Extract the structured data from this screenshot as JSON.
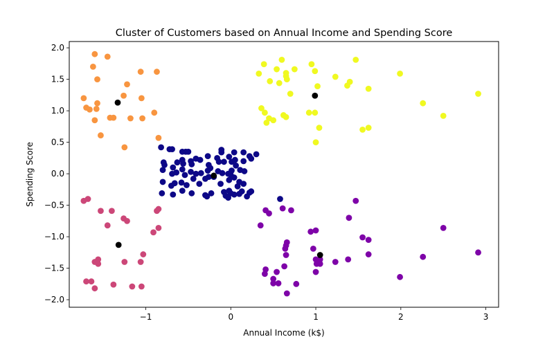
{
  "chart_data": {
    "type": "scatter",
    "title": "Cluster of Customers based on Annual Income and Spending Score",
    "xlabel": "Annual Income (k$)",
    "ylabel": "Spending Score",
    "xlim": [
      -1.9,
      3.15
    ],
    "ylim": [
      -2.12,
      2.1
    ],
    "xticks": [
      -1,
      0,
      1,
      2,
      3
    ],
    "yticks": [
      -2.0,
      -1.5,
      -1.0,
      -0.5,
      0.0,
      0.5,
      1.0,
      1.5,
      2.0
    ],
    "xtick_labels": [
      "−1",
      "0",
      "1",
      "2",
      "3"
    ],
    "ytick_labels": [
      "−2.0",
      "−1.5",
      "−1.0",
      "−0.5",
      "0.0",
      "0.5",
      "1.0",
      "1.5",
      "2.0"
    ],
    "grid": false,
    "clusters": [
      {
        "color": "#0d0887",
        "points": [
          [
            -0.82,
            0.42
          ],
          [
            -0.72,
            0.39
          ],
          [
            -0.69,
            0.39
          ],
          [
            -0.57,
            0.35
          ],
          [
            -0.53,
            0.35
          ],
          [
            -0.5,
            0.35
          ],
          [
            -0.27,
            0.28
          ],
          [
            -0.11,
            0.34
          ],
          [
            -0.11,
            0.38
          ],
          [
            -0.16,
            0.25
          ],
          [
            0.04,
            0.34
          ],
          [
            0.15,
            0.34
          ],
          [
            0.3,
            0.31
          ],
          [
            0.22,
            0.28
          ],
          [
            -0.02,
            0.27
          ],
          [
            -0.08,
            0.19
          ],
          [
            -0.14,
            0.19
          ],
          [
            0.01,
            0.19
          ],
          [
            0.06,
            0.13
          ],
          [
            0.05,
            0.22
          ],
          [
            0.15,
            0.2
          ],
          [
            0.24,
            0.24
          ],
          [
            -0.79,
            0.18
          ],
          [
            -0.78,
            0.14
          ],
          [
            -0.63,
            0.18
          ],
          [
            -0.68,
            0.1
          ],
          [
            -0.57,
            0.22
          ],
          [
            -0.56,
            0.16
          ],
          [
            -0.47,
            0.2
          ],
          [
            -0.46,
            0.15
          ],
          [
            -0.41,
            0.24
          ],
          [
            -0.36,
            0.22
          ],
          [
            -0.26,
            0.14
          ],
          [
            -0.27,
            0.05
          ],
          [
            -0.26,
            -0.05
          ],
          [
            -0.24,
            0.09
          ],
          [
            -0.8,
            0.06
          ],
          [
            -0.69,
            0.0
          ],
          [
            -0.64,
            0.02
          ],
          [
            -0.57,
            0.07
          ],
          [
            -0.54,
            -0.02
          ],
          [
            -0.47,
            0.03
          ],
          [
            -0.41,
            0.0
          ],
          [
            -0.35,
            0.01
          ],
          [
            -0.15,
            0.04
          ],
          [
            -0.1,
            0.01
          ],
          [
            -0.03,
            0.0
          ],
          [
            0.01,
            0.05
          ],
          [
            0.11,
            0.06
          ],
          [
            0.16,
            0.04
          ],
          [
            0.0,
            -0.02
          ],
          [
            0.04,
            -0.06
          ],
          [
            -0.8,
            -0.13
          ],
          [
            -0.7,
            -0.19
          ],
          [
            -0.66,
            -0.15
          ],
          [
            -0.58,
            -0.14
          ],
          [
            -0.52,
            -0.18
          ],
          [
            -0.44,
            -0.08
          ],
          [
            -0.37,
            -0.16
          ],
          [
            -0.3,
            -0.08
          ],
          [
            -0.2,
            -0.05
          ],
          [
            -0.12,
            -0.16
          ],
          [
            -0.02,
            -0.1
          ],
          [
            0.1,
            -0.13
          ],
          [
            0.15,
            -0.16
          ],
          [
            0.08,
            -0.2
          ],
          [
            -0.81,
            -0.31
          ],
          [
            -0.68,
            -0.33
          ],
          [
            -0.57,
            -0.27
          ],
          [
            -0.46,
            -0.31
          ],
          [
            -0.3,
            -0.34
          ],
          [
            -0.28,
            -0.36
          ],
          [
            -0.23,
            -0.31
          ],
          [
            -0.08,
            -0.29
          ],
          [
            -0.06,
            -0.35
          ],
          [
            0.0,
            -0.31
          ],
          [
            -0.03,
            -0.38
          ],
          [
            0.04,
            -0.33
          ],
          [
            0.13,
            -0.28
          ],
          [
            0.19,
            -0.36
          ],
          [
            0.22,
            -0.3
          ],
          [
            0.24,
            -0.28
          ],
          [
            0.1,
            -0.32
          ],
          [
            -0.02,
            -0.27
          ],
          [
            0.58,
            -0.4
          ]
        ]
      },
      {
        "color": "#f89540",
        "points": [
          [
            -1.6,
            1.9
          ],
          [
            -1.45,
            1.86
          ],
          [
            -1.62,
            1.7
          ],
          [
            -1.06,
            1.62
          ],
          [
            -0.87,
            1.62
          ],
          [
            -1.57,
            1.5
          ],
          [
            -1.22,
            1.42
          ],
          [
            -1.73,
            1.2
          ],
          [
            -1.57,
            1.12
          ],
          [
            -1.26,
            1.24
          ],
          [
            -1.05,
            1.2
          ],
          [
            -1.7,
            1.05
          ],
          [
            -1.66,
            1.02
          ],
          [
            -1.58,
            1.03
          ],
          [
            -0.9,
            0.97
          ],
          [
            -1.42,
            0.89
          ],
          [
            -1.38,
            0.89
          ],
          [
            -1.18,
            0.88
          ],
          [
            -1.04,
            0.88
          ],
          [
            -1.6,
            0.85
          ],
          [
            -1.53,
            0.61
          ],
          [
            -0.85,
            0.57
          ],
          [
            -1.25,
            0.42
          ]
        ]
      },
      {
        "color": "#f0f921",
        "points": [
          [
            0.6,
            1.81
          ],
          [
            0.39,
            1.74
          ],
          [
            0.95,
            1.74
          ],
          [
            1.47,
            1.81
          ],
          [
            0.33,
            1.59
          ],
          [
            0.54,
            1.66
          ],
          [
            0.65,
            1.6
          ],
          [
            0.65,
            1.55
          ],
          [
            0.75,
            1.66
          ],
          [
            0.99,
            1.63
          ],
          [
            0.57,
            1.44
          ],
          [
            0.46,
            1.47
          ],
          [
            0.66,
            1.5
          ],
          [
            1.23,
            1.54
          ],
          [
            1.4,
            1.46
          ],
          [
            1.37,
            1.4
          ],
          [
            1.02,
            1.39
          ],
          [
            1.62,
            1.35
          ],
          [
            0.7,
            1.27
          ],
          [
            1.99,
            1.59
          ],
          [
            2.91,
            1.27
          ],
          [
            0.36,
            1.04
          ],
          [
            0.4,
            0.97
          ],
          [
            0.45,
            0.88
          ],
          [
            0.42,
            0.81
          ],
          [
            0.5,
            0.85
          ],
          [
            0.62,
            0.93
          ],
          [
            0.65,
            0.9
          ],
          [
            0.92,
            0.97
          ],
          [
            0.99,
            0.97
          ],
          [
            2.26,
            1.12
          ],
          [
            2.5,
            0.92
          ],
          [
            1.04,
            0.73
          ],
          [
            1.55,
            0.7
          ],
          [
            1.62,
            0.73
          ],
          [
            1.0,
            0.5
          ]
        ]
      },
      {
        "color": "#cc4778",
        "points": [
          [
            -1.73,
            -0.43
          ],
          [
            -1.68,
            -0.4
          ],
          [
            -1.53,
            -0.59
          ],
          [
            -1.4,
            -0.59
          ],
          [
            -0.85,
            -0.56
          ],
          [
            -0.87,
            -0.59
          ],
          [
            -1.26,
            -0.71
          ],
          [
            -1.22,
            -0.75
          ],
          [
            -1.45,
            -0.82
          ],
          [
            -0.85,
            -0.86
          ],
          [
            -0.91,
            -0.93
          ],
          [
            -1.03,
            -1.28
          ],
          [
            -1.6,
            -1.4
          ],
          [
            -1.56,
            -1.36
          ],
          [
            -1.56,
            -1.43
          ],
          [
            -1.25,
            -1.4
          ],
          [
            -1.06,
            -1.4
          ],
          [
            -1.7,
            -1.71
          ],
          [
            -1.64,
            -1.71
          ],
          [
            -1.38,
            -1.76
          ],
          [
            -1.16,
            -1.79
          ],
          [
            -1.05,
            -1.79
          ],
          [
            -1.6,
            -1.82
          ]
        ]
      },
      {
        "color": "#7e03a8",
        "points": [
          [
            0.61,
            -0.55
          ],
          [
            0.71,
            -0.58
          ],
          [
            0.41,
            -0.58
          ],
          [
            0.45,
            -0.63
          ],
          [
            0.35,
            -0.82
          ],
          [
            1.47,
            -0.43
          ],
          [
            1.39,
            -0.7
          ],
          [
            2.5,
            -0.86
          ],
          [
            0.94,
            -0.92
          ],
          [
            1.0,
            -0.9
          ],
          [
            1.55,
            -1.01
          ],
          [
            1.62,
            -1.05
          ],
          [
            0.66,
            -1.09
          ],
          [
            0.65,
            -1.14
          ],
          [
            0.64,
            -1.19
          ],
          [
            0.65,
            -1.29
          ],
          [
            0.97,
            -1.19
          ],
          [
            1.0,
            -1.36
          ],
          [
            1.05,
            -1.36
          ],
          [
            1.62,
            -1.28
          ],
          [
            2.91,
            -1.25
          ],
          [
            2.26,
            -1.32
          ],
          [
            1.23,
            -1.4
          ],
          [
            1.38,
            -1.36
          ],
          [
            1.01,
            -1.43
          ],
          [
            1.05,
            -1.43
          ],
          [
            0.63,
            -1.47
          ],
          [
            0.41,
            -1.52
          ],
          [
            0.4,
            -1.59
          ],
          [
            0.54,
            -1.56
          ],
          [
            0.5,
            -1.67
          ],
          [
            0.5,
            -1.74
          ],
          [
            0.56,
            -1.74
          ],
          [
            0.77,
            -1.75
          ],
          [
            1.0,
            -1.56
          ],
          [
            1.99,
            -1.64
          ],
          [
            0.66,
            -1.9
          ]
        ]
      },
      {
        "color": "#000000",
        "role": "centroid",
        "points": [
          [
            -1.33,
            1.13
          ],
          [
            0.99,
            1.24
          ],
          [
            -0.2,
            -0.03
          ],
          [
            -1.32,
            -1.13
          ],
          [
            1.05,
            -1.29
          ]
        ]
      }
    ]
  }
}
